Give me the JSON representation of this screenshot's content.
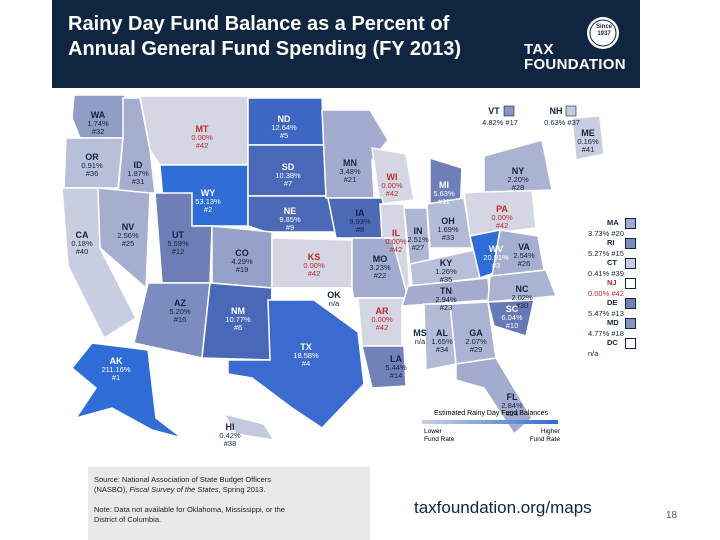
{
  "header": {
    "title_line1": "Rainy Day Fund Balance as a Percent of",
    "title_line2": "Annual General Fund Spending (FY 2013)",
    "logo_line1": "TAX",
    "logo_line2": "FOUNDATION",
    "seal_line1": "Since",
    "seal_line2": "1937",
    "bg_color": "#10253f"
  },
  "states": [
    {
      "abbr": "WA",
      "value": "1.74%",
      "rank": "#32",
      "color": "#8f9cc4",
      "ink": "#10253f"
    },
    {
      "abbr": "OR",
      "value": "0.91%",
      "rank": "#36",
      "color": "#b8c0d9",
      "ink": "#10253f"
    },
    {
      "abbr": "ID",
      "value": "1.87%",
      "rank": "#31",
      "color": "#a5aecf",
      "ink": "#10253f"
    },
    {
      "abbr": "MT",
      "value": "0.00%",
      "rank": "#42",
      "color": "#d4d7e3",
      "ink": "#c0282d"
    },
    {
      "abbr": "WY",
      "value": "53.13%",
      "rank": "#2",
      "color": "#2f6cd5",
      "ink": "#ffffff"
    },
    {
      "abbr": "ND",
      "value": "12.64%",
      "rank": "#5",
      "color": "#3e66c3",
      "ink": "#ffffff"
    },
    {
      "abbr": "SD",
      "value": "10.38%",
      "rank": "#7",
      "color": "#4a68b8",
      "ink": "#ffffff"
    },
    {
      "abbr": "NE",
      "value": "9.85%",
      "rank": "#9",
      "color": "#4c69b6",
      "ink": "#ffffff"
    },
    {
      "abbr": "MN",
      "value": "3.48%",
      "rank": "#21",
      "color": "#a3acce",
      "ink": "#10253f"
    },
    {
      "abbr": "WI",
      "value": "0.00%",
      "rank": "#42",
      "color": "#d4d7e3",
      "ink": "#c0282d"
    },
    {
      "abbr": "MI",
      "value": "5.63%",
      "rank": "#11",
      "color": "#6e7fb8",
      "ink": "#ffffff"
    },
    {
      "abbr": "IA",
      "value": "9.93%",
      "rank": "#8",
      "color": "#4c69b6",
      "ink": "#10253f"
    },
    {
      "abbr": "IL",
      "value": "0.00%",
      "rank": "#42",
      "color": "#d4d7e3",
      "ink": "#c0282d"
    },
    {
      "abbr": "IN",
      "value": "2.51%",
      "rank": "#27",
      "color": "#aeb6d3",
      "ink": "#10253f"
    },
    {
      "abbr": "OH",
      "value": "1.69%",
      "rank": "#33",
      "color": "#b3bbd6",
      "ink": "#10253f"
    },
    {
      "abbr": "PA",
      "value": "0.00%",
      "rank": "#42",
      "color": "#d4d7e3",
      "ink": "#c0282d"
    },
    {
      "abbr": "NY",
      "value": "2.20%",
      "rank": "#28",
      "color": "#aab3d2",
      "ink": "#10253f"
    },
    {
      "abbr": "ME",
      "value": "0.16%",
      "rank": "#41",
      "color": "#c8cde0",
      "ink": "#10253f"
    },
    {
      "abbr": "CA",
      "value": "0.18%",
      "rank": "#40",
      "color": "#c8cde0",
      "ink": "#10253f"
    },
    {
      "abbr": "NV",
      "value": "2.56%",
      "rank": "#25",
      "color": "#a5aecf",
      "ink": "#10253f"
    },
    {
      "abbr": "UT",
      "value": "5.59%",
      "rank": "#12",
      "color": "#6e7fb8",
      "ink": "#10253f"
    },
    {
      "abbr": "CO",
      "value": "4.29%",
      "rank": "#19",
      "color": "#95a1c8",
      "ink": "#10253f"
    },
    {
      "abbr": "KS",
      "value": "0.00%",
      "rank": "#42",
      "color": "#d4d7e3",
      "ink": "#c0282d"
    },
    {
      "abbr": "MO",
      "value": "3.23%",
      "rank": "#22",
      "color": "#a3acce",
      "ink": "#10253f"
    },
    {
      "abbr": "KY",
      "value": "1.26%",
      "rank": "#35",
      "color": "#b8c0d9",
      "ink": "#10253f"
    },
    {
      "abbr": "WV",
      "value": "20.91%",
      "rank": "#3",
      "color": "#2f6cd5",
      "ink": "#ffffff"
    },
    {
      "abbr": "VA",
      "value": "2.54%",
      "rank": "#26",
      "color": "#a5aecf",
      "ink": "#10253f"
    },
    {
      "abbr": "AZ",
      "value": "5.20%",
      "rank": "#16",
      "color": "#7d8cbf",
      "ink": "#10253f"
    },
    {
      "abbr": "NM",
      "value": "10.77%",
      "rank": "#6",
      "color": "#4a68b8",
      "ink": "#ffffff"
    },
    {
      "abbr": "OK",
      "value": "n/a",
      "rank": "",
      "color": "#ffffff",
      "ink": "#10253f"
    },
    {
      "abbr": "AR",
      "value": "0.00%",
      "rank": "#42",
      "color": "#d4d7e3",
      "ink": "#c0282d"
    },
    {
      "abbr": "TN",
      "value": "2.94%",
      "rank": "#23",
      "color": "#a3acce",
      "ink": "#10253f"
    },
    {
      "abbr": "NC",
      "value": "2.02%",
      "rank": "#30",
      "color": "#aab3d2",
      "ink": "#10253f"
    },
    {
      "abbr": "SC",
      "value": "6.04%",
      "rank": "#10",
      "color": "#6678b6",
      "ink": "#ffffff"
    },
    {
      "abbr": "MS",
      "value": "n/a",
      "rank": "",
      "color": "#ffffff",
      "ink": "#10253f"
    },
    {
      "abbr": "AL",
      "value": "1.65%",
      "rank": "#34",
      "color": "#b3bbd6",
      "ink": "#10253f"
    },
    {
      "abbr": "GA",
      "value": "2.07%",
      "rank": "#29",
      "color": "#aab3d2",
      "ink": "#10253f"
    },
    {
      "abbr": "TX",
      "value": "18.58%",
      "rank": "#4",
      "color": "#3b6bd0",
      "ink": "#ffffff"
    },
    {
      "abbr": "LA",
      "value": "5.44%",
      "rank": "#14",
      "color": "#7282b9",
      "ink": "#10253f"
    },
    {
      "abbr": "FL",
      "value": "2.84%",
      "rank": "#24",
      "color": "#a3acce",
      "ink": "#10253f"
    },
    {
      "abbr": "AK",
      "value": "211.16%",
      "rank": "#1",
      "color": "#2f6cd5",
      "ink": "#ffffff"
    },
    {
      "abbr": "HI",
      "value": "0.42%",
      "rank": "#38",
      "color": "#c3c9de",
      "ink": "#10253f"
    }
  ],
  "northeast": {
    "vt": {
      "abbr": "VT",
      "text": "4.82% #17",
      "color": "#8793c2"
    },
    "nh": {
      "abbr": "NH",
      "text": "0.63% #37",
      "color": "#c3c9de"
    },
    "rows": [
      {
        "abbr": "MA",
        "text": "3.73% #20",
        "color": "#a3acce",
        "ink": "#10253f"
      },
      {
        "abbr": "RI",
        "text": "5.27% #15",
        "color": "#7d8cbf",
        "ink": "#10253f"
      },
      {
        "abbr": "CT",
        "text": "0.41% #39",
        "color": "#c8cde0",
        "ink": "#10253f"
      },
      {
        "abbr": "NJ",
        "text": "0.00% #42",
        "color": "#ffffff",
        "ink": "#c0282d"
      },
      {
        "abbr": "DE",
        "text": "5.47% #13",
        "color": "#7282b9",
        "ink": "#10253f"
      },
      {
        "abbr": "MD",
        "text": "4.77% #18",
        "color": "#8793c2",
        "ink": "#10253f"
      },
      {
        "abbr": "DC",
        "text": "n/a",
        "color": "#ffffff",
        "ink": "#10253f"
      }
    ]
  },
  "legend": {
    "title": "Estimated Rainy Day Fund Balances",
    "low_line1": "Lower",
    "low_line2": "Fund Rate",
    "high_line1": "Higher",
    "high_line2": "Fund Rate",
    "low_color": "#c9cfe1",
    "high_color": "#2f6cd5"
  },
  "source": {
    "line1": "Source: National Association of State Budget Officers",
    "line2_prefix": "(NASBO), ",
    "line2_italic": "Fiscal Survey of the States",
    "line2_suffix": ", Spring 2013.",
    "note_line1": "Note: Data not available for Oklahoma, Mississippi, or the",
    "note_line2": "District of Columbia."
  },
  "url": "taxfoundation.org/maps",
  "page_number": "18"
}
